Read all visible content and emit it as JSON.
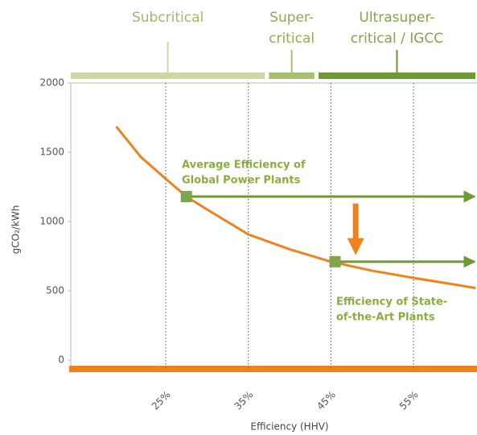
{
  "chart_data": {
    "type": "line",
    "xlabel": "Efficiency (HHV)",
    "ylabel": "gCO₂/kWh",
    "x": [
      19,
      22,
      25,
      27.5,
      30,
      35,
      40,
      45,
      50,
      55,
      60,
      62.5
    ],
    "values": [
      1686,
      1465,
      1308,
      1180,
      1087,
      907,
      800,
      710,
      645,
      593,
      545,
      520
    ],
    "color": "#f0821e",
    "xlim": [
      13.5,
      62.5
    ],
    "xticks": [
      {
        "value": 25,
        "label": "25%"
      },
      {
        "value": 35,
        "label": "35%"
      },
      {
        "value": 45,
        "label": "45%"
      },
      {
        "value": 55,
        "label": "55%"
      }
    ],
    "ylim": [
      0,
      2000
    ],
    "yticks": [
      0,
      500,
      1000,
      1500,
      2000
    ],
    "grid": true,
    "regions": [
      {
        "label": [
          "Subcritical"
        ],
        "range": [
          13.5,
          37
        ],
        "color": "#cdd7a3"
      },
      {
        "label": [
          "Super-",
          "critical"
        ],
        "range": [
          37.5,
          43
        ],
        "color": "#a9bf6b"
      },
      {
        "label": [
          "Ultrasuper-",
          "critical / IGCC"
        ],
        "range": [
          43.5,
          62.5
        ],
        "color": "#6f9a33"
      }
    ],
    "levels": [
      {
        "label": [
          "Average Efficiency of",
          "Global Power Plants"
        ],
        "x": 27.5,
        "y": 1180,
        "color": "#6f9a33"
      },
      {
        "label": [
          "Efficiency of State-",
          "of-the-Art Plants"
        ],
        "x": 45.5,
        "y": 710,
        "color": "#6f9a33"
      }
    ],
    "shift": {
      "x": 48,
      "from": 1130,
      "to": 760,
      "color": "#f0821e"
    }
  }
}
